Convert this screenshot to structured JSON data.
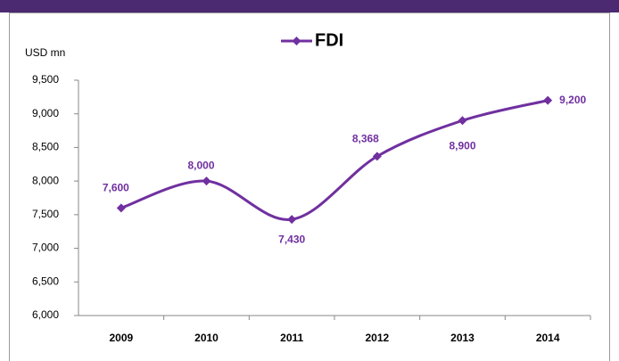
{
  "chart_data": {
    "type": "line",
    "legend_label": "FDI",
    "y_axis_label": "USD mn",
    "categories": [
      "2009",
      "2010",
      "2011",
      "2012",
      "2013",
      "2014"
    ],
    "series": [
      {
        "name": "FDI",
        "color": "#7030a0",
        "values": [
          7600,
          8000,
          7430,
          8368,
          8900,
          9200
        ],
        "value_labels": [
          "7,600",
          "8,000",
          "7,430",
          "8,368",
          "8,900",
          "9,200"
        ]
      }
    ],
    "ylim": [
      6000,
      9500
    ],
    "yticks": [
      {
        "value": 6000,
        "label": "6,000"
      },
      {
        "value": 6500,
        "label": "6,500"
      },
      {
        "value": 7000,
        "label": "7,000"
      },
      {
        "value": 7500,
        "label": "7,500"
      },
      {
        "value": 8000,
        "label": "8,000"
      },
      {
        "value": 8500,
        "label": "8,500"
      },
      {
        "value": 9000,
        "label": "9,000"
      },
      {
        "value": 9500,
        "label": "9,500"
      }
    ],
    "grid": false
  }
}
